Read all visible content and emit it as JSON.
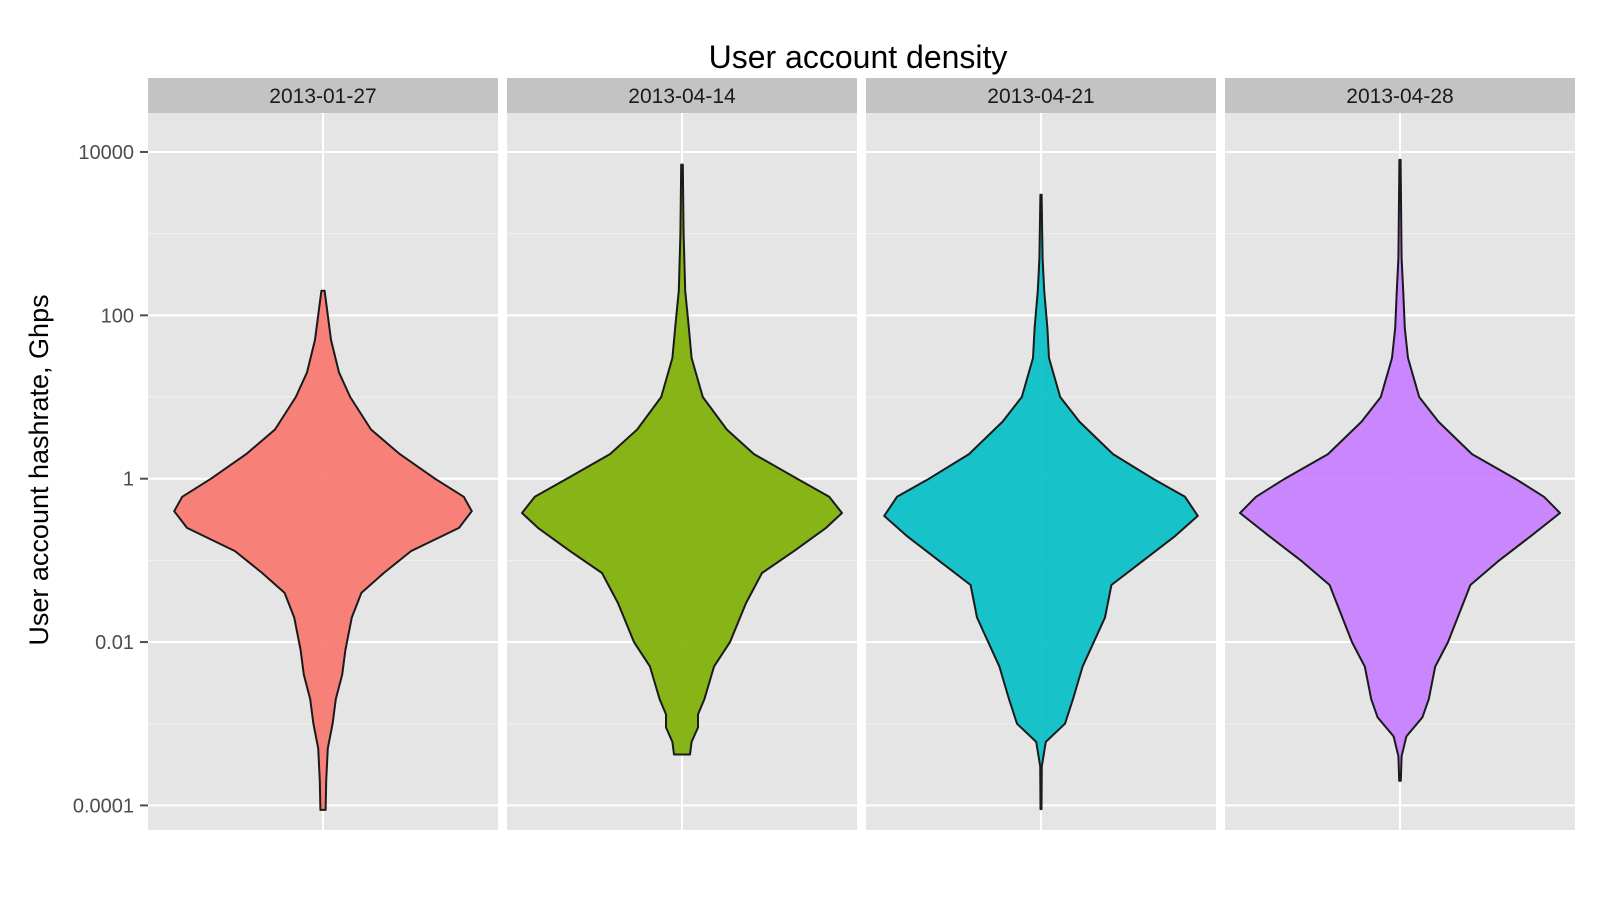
{
  "chart_data": {
    "type": "violin",
    "title": "User account density",
    "xlabel": "",
    "ylabel": "User account hashrate, Ghps",
    "yscale": "log10",
    "ylim": [
      5e-05,
      30000
    ],
    "yticks": [
      {
        "value": 0.0001,
        "label": "0.0001"
      },
      {
        "value": 0.01,
        "label": "0.01"
      },
      {
        "value": 1,
        "label": "1"
      },
      {
        "value": 100,
        "label": "100"
      },
      {
        "value": 10000,
        "label": "10000"
      }
    ],
    "grid": true,
    "legend": "none",
    "panels": [
      {
        "label": "2013-01-27",
        "fill": "#f8766d",
        "min": 8.8e-05,
        "max": 200,
        "density": [
          {
            "y": 8.8e-05,
            "w": 0.016
          },
          {
            "y": 0.0002,
            "w": 0.02
          },
          {
            "y": 0.0005,
            "w": 0.03
          },
          {
            "y": 0.001,
            "w": 0.06
          },
          {
            "y": 0.002,
            "w": 0.08
          },
          {
            "y": 0.004,
            "w": 0.12
          },
          {
            "y": 0.008,
            "w": 0.14
          },
          {
            "y": 0.02,
            "w": 0.18
          },
          {
            "y": 0.04,
            "w": 0.24
          },
          {
            "y": 0.07,
            "w": 0.38
          },
          {
            "y": 0.13,
            "w": 0.55
          },
          {
            "y": 0.25,
            "w": 0.85
          },
          {
            "y": 0.4,
            "w": 0.93
          },
          {
            "y": 0.6,
            "w": 0.88
          },
          {
            "y": 1,
            "w": 0.7
          },
          {
            "y": 2,
            "w": 0.48
          },
          {
            "y": 4,
            "w": 0.3
          },
          {
            "y": 10,
            "w": 0.17
          },
          {
            "y": 20,
            "w": 0.1
          },
          {
            "y": 50,
            "w": 0.05
          },
          {
            "y": 100,
            "w": 0.03
          },
          {
            "y": 200,
            "w": 0.01
          }
        ]
      },
      {
        "label": "2013-04-14",
        "fill": "#7cae00",
        "min": 0.00042,
        "max": 7000,
        "density": [
          {
            "y": 0.00042,
            "w": 0.05
          },
          {
            "y": 0.0006,
            "w": 0.06
          },
          {
            "y": 0.0009,
            "w": 0.1
          },
          {
            "y": 0.0013,
            "w": 0.1
          },
          {
            "y": 0.002,
            "w": 0.14
          },
          {
            "y": 0.005,
            "w": 0.2
          },
          {
            "y": 0.01,
            "w": 0.3
          },
          {
            "y": 0.03,
            "w": 0.4
          },
          {
            "y": 0.07,
            "w": 0.5
          },
          {
            "y": 0.13,
            "w": 0.7
          },
          {
            "y": 0.25,
            "w": 0.9
          },
          {
            "y": 0.38,
            "w": 1.0
          },
          {
            "y": 0.6,
            "w": 0.92
          },
          {
            "y": 1,
            "w": 0.72
          },
          {
            "y": 2,
            "w": 0.45
          },
          {
            "y": 4,
            "w": 0.28
          },
          {
            "y": 10,
            "w": 0.13
          },
          {
            "y": 30,
            "w": 0.06
          },
          {
            "y": 80,
            "w": 0.04
          },
          {
            "y": 200,
            "w": 0.02
          },
          {
            "y": 1000,
            "w": 0.01
          },
          {
            "y": 7000,
            "w": 0.005
          }
        ]
      },
      {
        "label": "2013-04-21",
        "fill": "#00bfc4",
        "min": 9e-05,
        "max": 3000,
        "density": [
          {
            "y": 9e-05,
            "w": 0.003
          },
          {
            "y": 0.0003,
            "w": 0.005
          },
          {
            "y": 0.0006,
            "w": 0.03
          },
          {
            "y": 0.001,
            "w": 0.15
          },
          {
            "y": 0.002,
            "w": 0.2
          },
          {
            "y": 0.005,
            "w": 0.26
          },
          {
            "y": 0.02,
            "w": 0.4
          },
          {
            "y": 0.05,
            "w": 0.44
          },
          {
            "y": 0.1,
            "w": 0.64
          },
          {
            "y": 0.2,
            "w": 0.84
          },
          {
            "y": 0.35,
            "w": 0.98
          },
          {
            "y": 0.6,
            "w": 0.9
          },
          {
            "y": 1,
            "w": 0.7
          },
          {
            "y": 2,
            "w": 0.45
          },
          {
            "y": 5,
            "w": 0.24
          },
          {
            "y": 10,
            "w": 0.12
          },
          {
            "y": 30,
            "w": 0.05
          },
          {
            "y": 70,
            "w": 0.04
          },
          {
            "y": 200,
            "w": 0.02
          },
          {
            "y": 500,
            "w": 0.01
          },
          {
            "y": 3000,
            "w": 0.004
          }
        ]
      },
      {
        "label": "2013-04-28",
        "fill": "#c77cff",
        "min": 0.0002,
        "max": 8000,
        "density": [
          {
            "y": 0.0002,
            "w": 0.005
          },
          {
            "y": 0.0004,
            "w": 0.01
          },
          {
            "y": 0.0007,
            "w": 0.04
          },
          {
            "y": 0.0012,
            "w": 0.14
          },
          {
            "y": 0.002,
            "w": 0.18
          },
          {
            "y": 0.005,
            "w": 0.22
          },
          {
            "y": 0.01,
            "w": 0.3
          },
          {
            "y": 0.025,
            "w": 0.38
          },
          {
            "y": 0.05,
            "w": 0.44
          },
          {
            "y": 0.1,
            "w": 0.62
          },
          {
            "y": 0.2,
            "w": 0.82
          },
          {
            "y": 0.38,
            "w": 1.0
          },
          {
            "y": 0.6,
            "w": 0.9
          },
          {
            "y": 1,
            "w": 0.72
          },
          {
            "y": 2,
            "w": 0.45
          },
          {
            "y": 5,
            "w": 0.24
          },
          {
            "y": 10,
            "w": 0.12
          },
          {
            "y": 30,
            "w": 0.05
          },
          {
            "y": 70,
            "w": 0.03
          },
          {
            "y": 200,
            "w": 0.02
          },
          {
            "y": 500,
            "w": 0.01
          },
          {
            "y": 8000,
            "w": 0.004
          }
        ]
      }
    ]
  }
}
